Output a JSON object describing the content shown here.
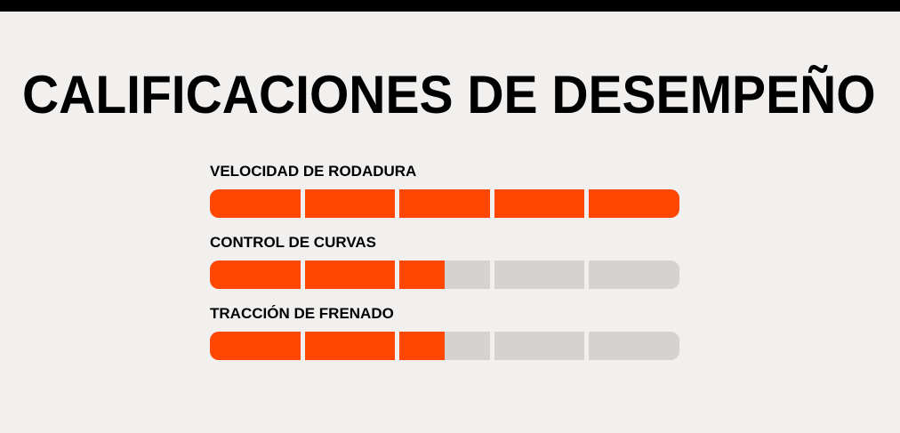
{
  "page": {
    "background_color": "#f1f0ee",
    "top_bar_color": "#000000",
    "title": "CALIFICACIONES DE DESEMPEÑO"
  },
  "ratings": {
    "segment_count": 5,
    "fill_color": "#fd4703",
    "track_color": "#d5d2cf",
    "items": [
      {
        "label": "VELOCIDAD DE RODADURA",
        "percent": 100
      },
      {
        "label": "CONTROL DE CURVAS",
        "percent": 50
      },
      {
        "label": "TRACCIÓN DE FRENADO",
        "percent": 50
      }
    ]
  }
}
